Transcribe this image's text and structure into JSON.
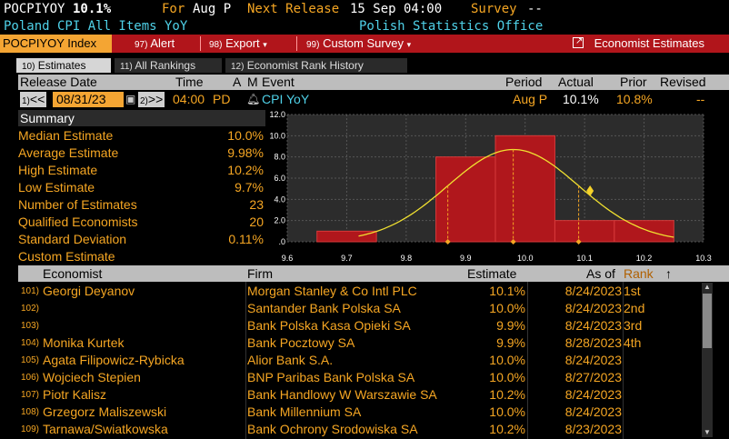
{
  "header": {
    "ticker": "POCPIYOY",
    "value": "10.1%",
    "for_label": "For",
    "period": "Aug P",
    "next_release_label": "Next Release",
    "next_release": "15 Sep 04:00",
    "survey_label": "Survey",
    "survey_value": "--",
    "description": "Poland CPI All Items YoY",
    "source": "Polish Statistics Office"
  },
  "toolbar": {
    "security": "POCPIYOY Index",
    "alert_num": "97)",
    "alert": "Alert",
    "export_num": "98)",
    "export": "Export",
    "custom_num": "99)",
    "custom": "Custom Survey",
    "economist": "Economist Estimates"
  },
  "tabs": [
    {
      "num": "10)",
      "label": "Estimates"
    },
    {
      "num": "11)",
      "label": "All Rankings"
    },
    {
      "num": "12)",
      "label": "Economist Rank History"
    }
  ],
  "event_header": {
    "release_date": "Release Date",
    "time": "Time",
    "a": "A",
    "m": "M",
    "event": "Event",
    "period": "Period",
    "actual": "Actual",
    "prior": "Prior",
    "revised": "Revised"
  },
  "event_row": {
    "prev_num": "1)",
    "prev": "<<",
    "date": "08/31/23",
    "next_num": "2)",
    "next": ">>",
    "time": "04:00",
    "pd": "PD",
    "event": "CPI YoY",
    "period": "Aug P",
    "actual": "10.1%",
    "prior": "10.8%",
    "revised": "--"
  },
  "summary": {
    "title": "Summary",
    "rows": [
      {
        "label": "Median Estimate",
        "value": "10.0%"
      },
      {
        "label": "Average Estimate",
        "value": "9.98%"
      },
      {
        "label": "High Estimate",
        "value": "10.2%"
      },
      {
        "label": "Low Estimate",
        "value": "9.7%"
      },
      {
        "label": "Number of Estimates",
        "value": "23"
      },
      {
        "label": "Qualified Economists",
        "value": "20"
      },
      {
        "label": "Standard Deviation",
        "value": "0.11%"
      },
      {
        "label": "Custom Estimate",
        "value": ""
      }
    ]
  },
  "chart_data": {
    "type": "bar",
    "x_edges": [
      9.6,
      9.7,
      9.8,
      9.9,
      10.0,
      10.1,
      10.2,
      10.3
    ],
    "bins": [
      {
        "from": 9.65,
        "to": 9.75,
        "value": 1
      },
      {
        "from": 9.85,
        "to": 9.95,
        "value": 8
      },
      {
        "from": 9.95,
        "to": 10.05,
        "value": 10
      },
      {
        "from": 10.05,
        "to": 10.15,
        "value": 2
      },
      {
        "from": 10.15,
        "to": 10.25,
        "value": 2
      }
    ],
    "x_ticks": [
      "9.6",
      "9.7",
      "9.8",
      "9.9",
      "10.0",
      "10.1",
      "10.2",
      "10.3"
    ],
    "y_ticks": [
      ".0",
      "2.0",
      "4.0",
      "6.0",
      "8.0",
      "10.0",
      "12.0"
    ],
    "xlim": [
      9.6,
      10.3
    ],
    "ylim": [
      0,
      12
    ],
    "normal_curve": {
      "mean": 9.98,
      "sd": 0.11
    },
    "markers": [
      9.87,
      9.98,
      10.09
    ],
    "actual_marker": 10.1,
    "colors": {
      "bar": "#b0171c",
      "curve": "#f0e030",
      "marker": "#f5a623"
    }
  },
  "table": {
    "headers": {
      "economist": "Economist",
      "firm": "Firm",
      "estimate": "Estimate",
      "asof": "As of",
      "rank": "Rank",
      "sort_arrow": "↑"
    },
    "rows": [
      {
        "idx": "101)",
        "name": "Georgi Deyanov",
        "firm": "Morgan Stanley & Co Intl PLC",
        "estimate": "10.1%",
        "asof": "8/24/2023",
        "rank": "1st"
      },
      {
        "idx": "102)",
        "name": "",
        "firm": "Santander Bank Polska SA",
        "estimate": "10.0%",
        "asof": "8/24/2023",
        "rank": "2nd"
      },
      {
        "idx": "103)",
        "name": "",
        "firm": "Bank Polska Kasa Opieki SA",
        "estimate": "9.9%",
        "asof": "8/24/2023",
        "rank": "3rd"
      },
      {
        "idx": "104)",
        "name": "Monika Kurtek",
        "firm": "Bank Pocztowy SA",
        "estimate": "9.9%",
        "asof": "8/28/2023",
        "rank": "4th"
      },
      {
        "idx": "105)",
        "name": "Agata Filipowicz-Rybicka",
        "firm": "Alior Bank S.A.",
        "estimate": "10.0%",
        "asof": "8/24/2023",
        "rank": ""
      },
      {
        "idx": "106)",
        "name": "Wojciech Stepien",
        "firm": "BNP Paribas Bank Polska SA",
        "estimate": "10.0%",
        "asof": "8/27/2023",
        "rank": ""
      },
      {
        "idx": "107)",
        "name": "Piotr Kalisz",
        "firm": "Bank Handlowy W Warszawie SA",
        "estimate": "10.2%",
        "asof": "8/24/2023",
        "rank": ""
      },
      {
        "idx": "108)",
        "name": "Grzegorz Maliszewski",
        "firm": "Bank Millennium SA",
        "estimate": "10.0%",
        "asof": "8/24/2023",
        "rank": ""
      },
      {
        "idx": "109)",
        "name": "Tarnawa/Swiatkowska",
        "firm": "Bank Ochrony Srodowiska SA",
        "estimate": "10.2%",
        "asof": "8/23/2023",
        "rank": ""
      }
    ]
  }
}
